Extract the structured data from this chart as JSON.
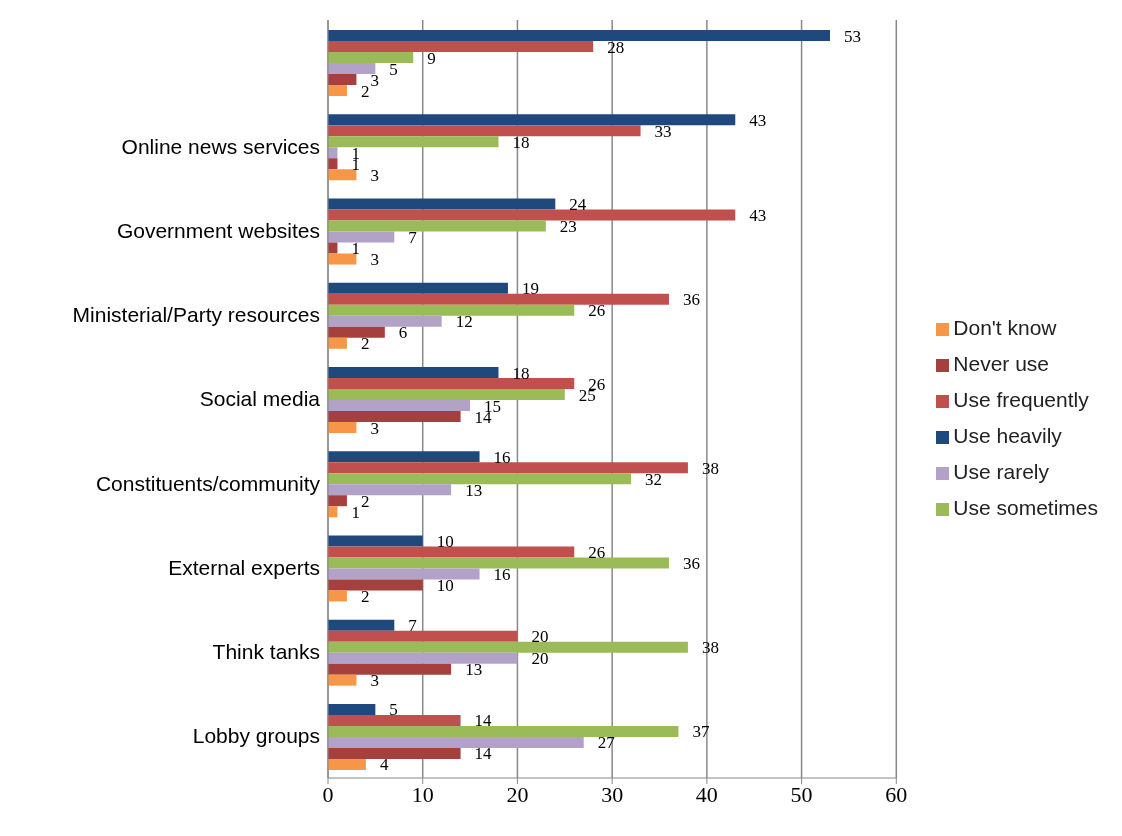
{
  "chart_data": {
    "type": "bar",
    "orientation": "horizontal",
    "categories": [
      null,
      "Online news services",
      "Government websites",
      "Ministerial/Party resources",
      "Social media",
      "Constituents/community",
      "External experts",
      "Think tanks",
      "Lobby groups"
    ],
    "series": [
      {
        "name": "Use heavily",
        "color": "#1f497d",
        "values": [
          53,
          43,
          24,
          19,
          18,
          16,
          10,
          7,
          5
        ]
      },
      {
        "name": "Use frequently",
        "color": "#c0504d",
        "values": [
          28,
          33,
          43,
          36,
          26,
          38,
          26,
          20,
          14
        ]
      },
      {
        "name": "Use sometimes",
        "color": "#9bbb59",
        "values": [
          9,
          18,
          23,
          26,
          25,
          32,
          36,
          38,
          37
        ]
      },
      {
        "name": "Use rarely",
        "color": "#b3a2c7",
        "values": [
          5,
          1,
          7,
          12,
          15,
          13,
          16,
          20,
          27
        ]
      },
      {
        "name": "Never use",
        "color": "#a5403e",
        "values": [
          3,
          1,
          1,
          6,
          14,
          2,
          10,
          13,
          14
        ]
      },
      {
        "name": "Don't know",
        "color": "#f79646",
        "values": [
          2,
          3,
          3,
          2,
          3,
          1,
          2,
          3,
          4
        ]
      }
    ],
    "xlim": [
      0,
      60
    ],
    "xticks": [
      0,
      10,
      20,
      30,
      40,
      50,
      60
    ],
    "grid": "x",
    "legend": "right",
    "data_labels": true
  }
}
